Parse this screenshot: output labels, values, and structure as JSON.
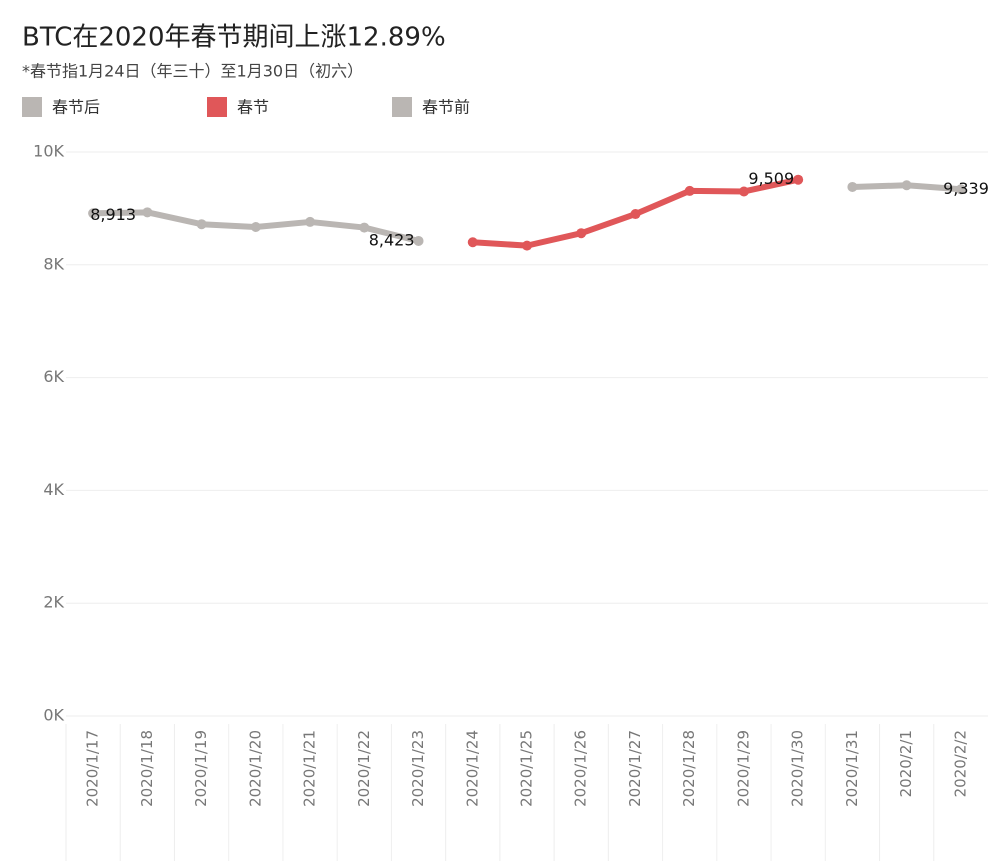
{
  "chart_data": {
    "type": "line",
    "title": "BTC在2020年春节期间上涨12.89%",
    "subtitle": "*春节指1月24日（年三十）至1月30日（初六）",
    "categories": [
      "2020/1/17",
      "2020/1/18",
      "2020/1/19",
      "2020/1/20",
      "2020/1/21",
      "2020/1/22",
      "2020/1/23",
      "2020/1/24",
      "2020/1/25",
      "2020/1/26",
      "2020/1/27",
      "2020/1/28",
      "2020/1/29",
      "2020/1/30",
      "2020/1/31",
      "2020/2/1",
      "2020/2/2"
    ],
    "series": [
      {
        "name": "春节后",
        "color": "#bab6b3",
        "values": [
          null,
          null,
          null,
          null,
          null,
          null,
          null,
          null,
          null,
          null,
          null,
          null,
          null,
          null,
          9380,
          9410,
          9339
        ],
        "value_labels": [
          null,
          null,
          null,
          null,
          null,
          null,
          null,
          null,
          null,
          null,
          null,
          null,
          null,
          null,
          null,
          null,
          "9,339"
        ]
      },
      {
        "name": "春节",
        "color": "#e05759",
        "values": [
          null,
          null,
          null,
          null,
          null,
          null,
          null,
          8400,
          8340,
          8560,
          8900,
          9310,
          9300,
          9509,
          null,
          null,
          null
        ],
        "value_labels": [
          null,
          null,
          null,
          null,
          null,
          null,
          null,
          null,
          null,
          null,
          null,
          null,
          null,
          "9,509",
          null,
          null,
          null
        ]
      },
      {
        "name": "春节前",
        "color": "#bab6b3",
        "values": [
          8913,
          8930,
          8720,
          8670,
          8760,
          8660,
          8423,
          null,
          null,
          null,
          null,
          null,
          null,
          null,
          null,
          null,
          null
        ],
        "value_labels": [
          "8,913",
          null,
          null,
          null,
          null,
          null,
          "8,423",
          null,
          null,
          null,
          null,
          null,
          null,
          null,
          null,
          null,
          null
        ]
      }
    ],
    "ylim": [
      0,
      10000
    ],
    "yticks": [
      {
        "value": 0,
        "label": "0K"
      },
      {
        "value": 2000,
        "label": "2K"
      },
      {
        "value": 4000,
        "label": "4K"
      },
      {
        "value": 6000,
        "label": "6K"
      },
      {
        "value": 8000,
        "label": "8K"
      },
      {
        "value": 10000,
        "label": "10K"
      }
    ],
    "grid": true
  }
}
